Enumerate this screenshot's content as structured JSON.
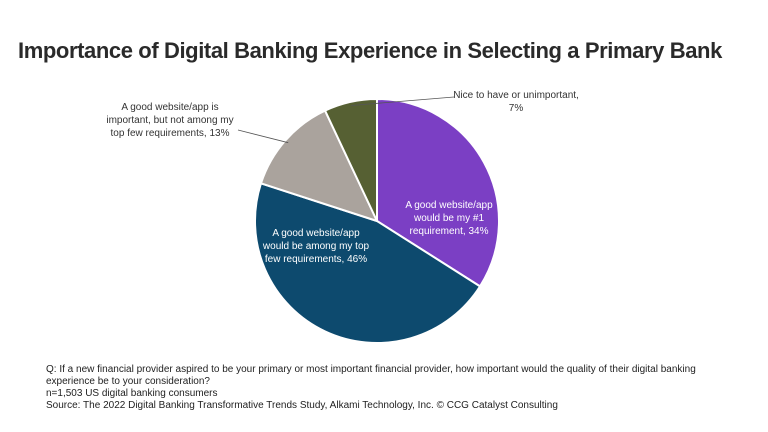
{
  "chart_data": {
    "type": "pie",
    "title": "Importance of Digital Banking Experience in Selecting a Primary Bank",
    "slices": [
      {
        "label": "A good website/app would be my #1 requirement, 34%",
        "label_lines": [
          "A good website/app",
          "would be my #1",
          "requirement, 34%"
        ],
        "value": 34,
        "color": "#7b3fc4"
      },
      {
        "label": "A good website/app would be among my top few requirements, 46%",
        "label_lines": [
          "A good website/app",
          "would be among my top",
          "few requirements, 46%"
        ],
        "value": 46,
        "color": "#0d4a6e"
      },
      {
        "label": "A good website/app is important, but not among my top few requirements, 13%",
        "label_lines": [
          "A good website/app is",
          "important, but not among my",
          "top few requirements, 13%"
        ],
        "value": 13,
        "color": "#aaa39d"
      },
      {
        "label": "Nice to have or unimportant, 7%",
        "label_lines": [
          "Nice to have or unimportant,",
          "7%"
        ],
        "value": 7,
        "color": "#566033"
      }
    ]
  },
  "footnote": {
    "question": "Q: If a new financial provider aspired to be your primary or most important financial provider, how important would the quality of their digital banking experience be to your consideration?",
    "question_line1": "Q: If a new financial provider aspired to be your primary or most important financial provider, how important would the quality of their digital banking",
    "question_line2": "experience be to your consideration?",
    "sample": "n=1,503 US digital banking consumers",
    "source": "Source: The 2022 Digital Banking Transformative Trends Study, Alkami Technology, Inc. © CCG Catalyst Consulting"
  }
}
